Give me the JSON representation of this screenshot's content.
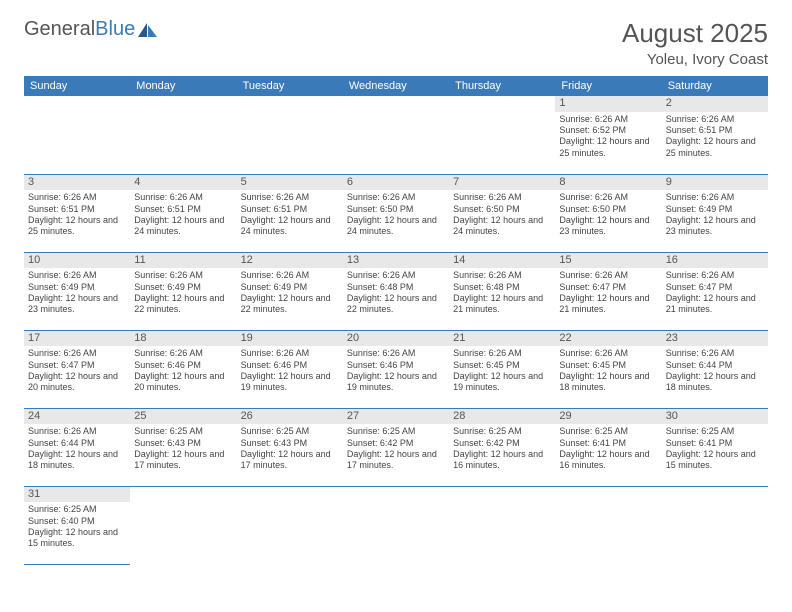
{
  "logo": {
    "part1": "General",
    "part2": "Blue"
  },
  "title": {
    "month": "August 2025",
    "location": "Yoleu, Ivory Coast"
  },
  "headers": [
    "Sunday",
    "Monday",
    "Tuesday",
    "Wednesday",
    "Thursday",
    "Friday",
    "Saturday"
  ],
  "colors": {
    "header_bg": "#3a7ab8",
    "header_text": "#ffffff",
    "daynum_bg": "#e8e8e8",
    "border": "#3a7ab8",
    "text": "#444444"
  },
  "weeks": [
    [
      null,
      null,
      null,
      null,
      null,
      {
        "n": "1",
        "sr": "6:26 AM",
        "ss": "6:52 PM",
        "dl": "12 hours and 25 minutes."
      },
      {
        "n": "2",
        "sr": "6:26 AM",
        "ss": "6:51 PM",
        "dl": "12 hours and 25 minutes."
      }
    ],
    [
      {
        "n": "3",
        "sr": "6:26 AM",
        "ss": "6:51 PM",
        "dl": "12 hours and 25 minutes."
      },
      {
        "n": "4",
        "sr": "6:26 AM",
        "ss": "6:51 PM",
        "dl": "12 hours and 24 minutes."
      },
      {
        "n": "5",
        "sr": "6:26 AM",
        "ss": "6:51 PM",
        "dl": "12 hours and 24 minutes."
      },
      {
        "n": "6",
        "sr": "6:26 AM",
        "ss": "6:50 PM",
        "dl": "12 hours and 24 minutes."
      },
      {
        "n": "7",
        "sr": "6:26 AM",
        "ss": "6:50 PM",
        "dl": "12 hours and 24 minutes."
      },
      {
        "n": "8",
        "sr": "6:26 AM",
        "ss": "6:50 PM",
        "dl": "12 hours and 23 minutes."
      },
      {
        "n": "9",
        "sr": "6:26 AM",
        "ss": "6:49 PM",
        "dl": "12 hours and 23 minutes."
      }
    ],
    [
      {
        "n": "10",
        "sr": "6:26 AM",
        "ss": "6:49 PM",
        "dl": "12 hours and 23 minutes."
      },
      {
        "n": "11",
        "sr": "6:26 AM",
        "ss": "6:49 PM",
        "dl": "12 hours and 22 minutes."
      },
      {
        "n": "12",
        "sr": "6:26 AM",
        "ss": "6:49 PM",
        "dl": "12 hours and 22 minutes."
      },
      {
        "n": "13",
        "sr": "6:26 AM",
        "ss": "6:48 PM",
        "dl": "12 hours and 22 minutes."
      },
      {
        "n": "14",
        "sr": "6:26 AM",
        "ss": "6:48 PM",
        "dl": "12 hours and 21 minutes."
      },
      {
        "n": "15",
        "sr": "6:26 AM",
        "ss": "6:47 PM",
        "dl": "12 hours and 21 minutes."
      },
      {
        "n": "16",
        "sr": "6:26 AM",
        "ss": "6:47 PM",
        "dl": "12 hours and 21 minutes."
      }
    ],
    [
      {
        "n": "17",
        "sr": "6:26 AM",
        "ss": "6:47 PM",
        "dl": "12 hours and 20 minutes."
      },
      {
        "n": "18",
        "sr": "6:26 AM",
        "ss": "6:46 PM",
        "dl": "12 hours and 20 minutes."
      },
      {
        "n": "19",
        "sr": "6:26 AM",
        "ss": "6:46 PM",
        "dl": "12 hours and 19 minutes."
      },
      {
        "n": "20",
        "sr": "6:26 AM",
        "ss": "6:46 PM",
        "dl": "12 hours and 19 minutes."
      },
      {
        "n": "21",
        "sr": "6:26 AM",
        "ss": "6:45 PM",
        "dl": "12 hours and 19 minutes."
      },
      {
        "n": "22",
        "sr": "6:26 AM",
        "ss": "6:45 PM",
        "dl": "12 hours and 18 minutes."
      },
      {
        "n": "23",
        "sr": "6:26 AM",
        "ss": "6:44 PM",
        "dl": "12 hours and 18 minutes."
      }
    ],
    [
      {
        "n": "24",
        "sr": "6:26 AM",
        "ss": "6:44 PM",
        "dl": "12 hours and 18 minutes."
      },
      {
        "n": "25",
        "sr": "6:25 AM",
        "ss": "6:43 PM",
        "dl": "12 hours and 17 minutes."
      },
      {
        "n": "26",
        "sr": "6:25 AM",
        "ss": "6:43 PM",
        "dl": "12 hours and 17 minutes."
      },
      {
        "n": "27",
        "sr": "6:25 AM",
        "ss": "6:42 PM",
        "dl": "12 hours and 17 minutes."
      },
      {
        "n": "28",
        "sr": "6:25 AM",
        "ss": "6:42 PM",
        "dl": "12 hours and 16 minutes."
      },
      {
        "n": "29",
        "sr": "6:25 AM",
        "ss": "6:41 PM",
        "dl": "12 hours and 16 minutes."
      },
      {
        "n": "30",
        "sr": "6:25 AM",
        "ss": "6:41 PM",
        "dl": "12 hours and 15 minutes."
      }
    ],
    [
      {
        "n": "31",
        "sr": "6:25 AM",
        "ss": "6:40 PM",
        "dl": "12 hours and 15 minutes."
      },
      null,
      null,
      null,
      null,
      null,
      null
    ]
  ],
  "labels": {
    "sunrise": "Sunrise: ",
    "sunset": "Sunset: ",
    "daylight": "Daylight: "
  }
}
